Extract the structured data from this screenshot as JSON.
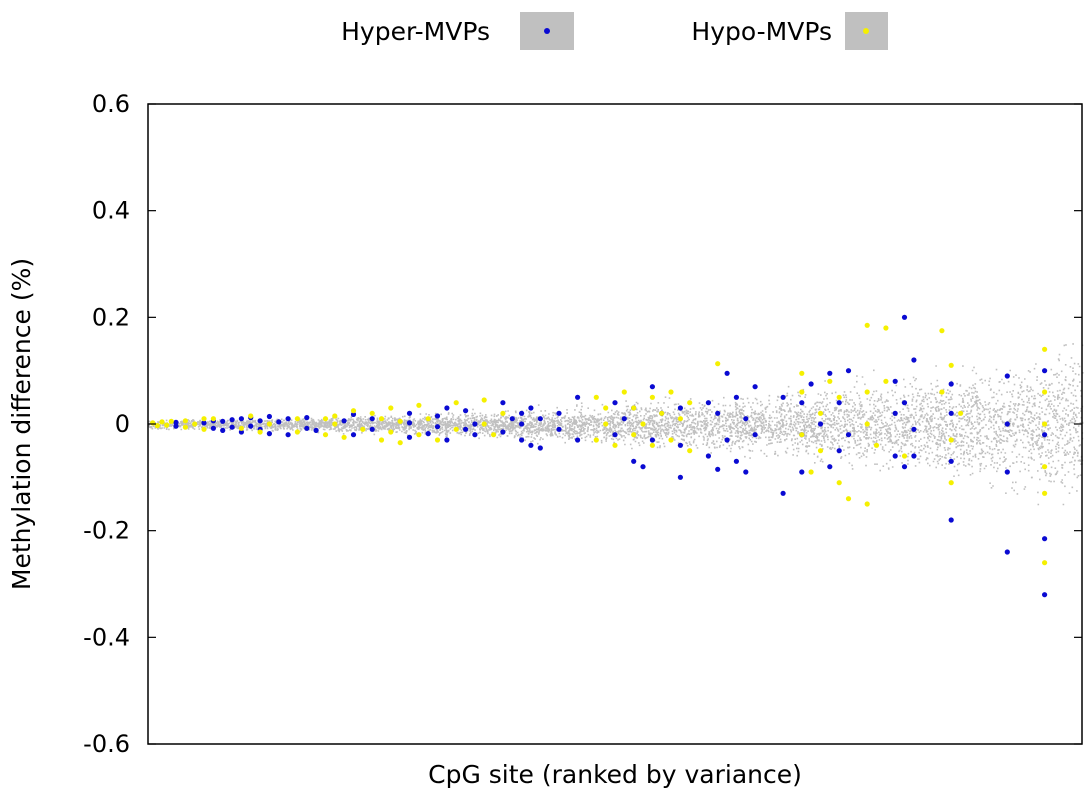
{
  "chart_data": {
    "type": "scatter",
    "title": "",
    "xlabel": "CpG site (ranked by variance)",
    "ylabel": "Methylation difference (%)",
    "ylim": [
      -0.6,
      0.6
    ],
    "yticks": [
      "0.6",
      "0.4",
      "0.2",
      "0",
      "-0.2",
      "-0.4",
      "-0.6"
    ],
    "ytick_values": [
      0.6,
      0.4,
      0.2,
      0,
      -0.2,
      -0.4,
      -0.6
    ],
    "xlim": [
      0,
      1
    ],
    "grid": false,
    "legend_position": "top",
    "background_points": {
      "color": "#c0c0c0",
      "description_shape": "funnel widening with rank"
    },
    "series": [
      {
        "name": "Hyper-MVPs",
        "color": "#0a0ad2",
        "legend_box": "#c0c0c0",
        "points": [
          [
            0.03,
            0.003
          ],
          [
            0.03,
            -0.004
          ],
          [
            0.06,
            0.002
          ],
          [
            0.07,
            -0.008
          ],
          [
            0.07,
            0.006
          ],
          [
            0.08,
            -0.012
          ],
          [
            0.08,
            0.005
          ],
          [
            0.09,
            -0.006
          ],
          [
            0.09,
            0.008
          ],
          [
            0.1,
            -0.015
          ],
          [
            0.1,
            0.01
          ],
          [
            0.11,
            -0.004
          ],
          [
            0.11,
            0.012
          ],
          [
            0.12,
            -0.01
          ],
          [
            0.12,
            0.006
          ],
          [
            0.13,
            -0.018
          ],
          [
            0.13,
            0.014
          ],
          [
            0.14,
            0.004
          ],
          [
            0.15,
            -0.02
          ],
          [
            0.15,
            0.01
          ],
          [
            0.17,
            -0.008
          ],
          [
            0.17,
            0.012
          ],
          [
            0.18,
            -0.012
          ],
          [
            0.21,
            0.006
          ],
          [
            0.22,
            -0.02
          ],
          [
            0.22,
            0.018
          ],
          [
            0.24,
            -0.01
          ],
          [
            0.24,
            0.01
          ],
          [
            0.28,
            -0.025
          ],
          [
            0.28,
            0.02
          ],
          [
            0.28,
            0.002
          ],
          [
            0.3,
            -0.018
          ],
          [
            0.31,
            0.015
          ],
          [
            0.31,
            -0.005
          ],
          [
            0.32,
            0.03
          ],
          [
            0.32,
            -0.03
          ],
          [
            0.34,
            -0.01
          ],
          [
            0.34,
            0.025
          ],
          [
            0.35,
            0.0
          ],
          [
            0.35,
            -0.02
          ],
          [
            0.38,
            0.04
          ],
          [
            0.38,
            -0.015
          ],
          [
            0.39,
            0.01
          ],
          [
            0.4,
            -0.03
          ],
          [
            0.4,
            0.02
          ],
          [
            0.4,
            0.0
          ],
          [
            0.41,
            -0.04
          ],
          [
            0.41,
            0.03
          ],
          [
            0.42,
            0.01
          ],
          [
            0.42,
            -0.045
          ],
          [
            0.44,
            -0.01
          ],
          [
            0.44,
            0.02
          ],
          [
            0.46,
            0.05
          ],
          [
            0.46,
            -0.03
          ],
          [
            0.5,
            0.04
          ],
          [
            0.5,
            -0.02
          ],
          [
            0.51,
            0.01
          ],
          [
            0.52,
            -0.07
          ],
          [
            0.52,
            0.03
          ],
          [
            0.53,
            -0.08
          ],
          [
            0.54,
            0.07
          ],
          [
            0.54,
            -0.03
          ],
          [
            0.55,
            0.02
          ],
          [
            0.57,
            -0.04
          ],
          [
            0.57,
            0.03
          ],
          [
            0.57,
            -0.1
          ],
          [
            0.6,
            0.04
          ],
          [
            0.6,
            -0.06
          ],
          [
            0.61,
            0.02
          ],
          [
            0.61,
            -0.085
          ],
          [
            0.62,
            0.095
          ],
          [
            0.62,
            -0.03
          ],
          [
            0.63,
            0.05
          ],
          [
            0.63,
            -0.07
          ],
          [
            0.64,
            0.01
          ],
          [
            0.64,
            -0.09
          ],
          [
            0.65,
            0.07
          ],
          [
            0.65,
            -0.02
          ],
          [
            0.68,
            -0.13
          ],
          [
            0.68,
            0.05
          ],
          [
            0.7,
            -0.09
          ],
          [
            0.7,
            0.04
          ],
          [
            0.7,
            -0.02
          ],
          [
            0.71,
            0.075
          ],
          [
            0.72,
            0.0
          ],
          [
            0.73,
            -0.08
          ],
          [
            0.73,
            0.095
          ],
          [
            0.74,
            0.04
          ],
          [
            0.74,
            -0.05
          ],
          [
            0.75,
            0.1
          ],
          [
            0.75,
            -0.02
          ],
          [
            0.8,
            0.08
          ],
          [
            0.8,
            -0.06
          ],
          [
            0.8,
            0.02
          ],
          [
            0.81,
            -0.08
          ],
          [
            0.81,
            0.2
          ],
          [
            0.81,
            0.04
          ],
          [
            0.82,
            -0.01
          ],
          [
            0.82,
            0.12
          ],
          [
            0.82,
            -0.06
          ],
          [
            0.86,
            -0.18
          ],
          [
            0.86,
            0.075
          ],
          [
            0.86,
            -0.07
          ],
          [
            0.86,
            0.02
          ],
          [
            0.92,
            0.09
          ],
          [
            0.92,
            -0.24
          ],
          [
            0.92,
            -0.09
          ],
          [
            0.92,
            0.0
          ],
          [
            0.96,
            -0.32
          ],
          [
            0.96,
            -0.215
          ],
          [
            0.96,
            0.1
          ],
          [
            0.96,
            -0.02
          ]
        ]
      },
      {
        "name": "Hypo-MVPs",
        "color": "#f5f000",
        "legend_box": "#c0c0c0",
        "points": [
          [
            0.005,
            0.002
          ],
          [
            0.01,
            -0.003
          ],
          [
            0.015,
            0.004
          ],
          [
            0.02,
            -0.002
          ],
          [
            0.025,
            0.005
          ],
          [
            0.04,
            -0.006
          ],
          [
            0.04,
            0.006
          ],
          [
            0.05,
            0.0
          ],
          [
            0.06,
            0.01
          ],
          [
            0.06,
            -0.01
          ],
          [
            0.07,
            0.01
          ],
          [
            0.1,
            -0.008
          ],
          [
            0.11,
            0.015
          ],
          [
            0.12,
            -0.015
          ],
          [
            0.13,
            0.0
          ],
          [
            0.16,
            0.01
          ],
          [
            0.16,
            -0.015
          ],
          [
            0.19,
            0.01
          ],
          [
            0.19,
            -0.02
          ],
          [
            0.2,
            0.0
          ],
          [
            0.2,
            0.015
          ],
          [
            0.21,
            -0.025
          ],
          [
            0.22,
            0.025
          ],
          [
            0.23,
            -0.01
          ],
          [
            0.24,
            0.02
          ],
          [
            0.25,
            -0.03
          ],
          [
            0.25,
            0.01
          ],
          [
            0.26,
            0.03
          ],
          [
            0.26,
            -0.015
          ],
          [
            0.27,
            0.005
          ],
          [
            0.27,
            -0.035
          ],
          [
            0.29,
            0.035
          ],
          [
            0.29,
            -0.02
          ],
          [
            0.3,
            0.01
          ],
          [
            0.31,
            -0.03
          ],
          [
            0.33,
            0.04
          ],
          [
            0.33,
            -0.01
          ],
          [
            0.36,
            0.045
          ],
          [
            0.36,
            0.0
          ],
          [
            0.37,
            -0.02
          ],
          [
            0.38,
            0.02
          ],
          [
            0.48,
            0.05
          ],
          [
            0.48,
            -0.03
          ],
          [
            0.49,
            0.0
          ],
          [
            0.49,
            0.03
          ],
          [
            0.5,
            -0.04
          ],
          [
            0.51,
            0.06
          ],
          [
            0.52,
            0.03
          ],
          [
            0.52,
            -0.02
          ],
          [
            0.53,
            0.0
          ],
          [
            0.54,
            0.05
          ],
          [
            0.54,
            -0.04
          ],
          [
            0.55,
            0.02
          ],
          [
            0.56,
            0.06
          ],
          [
            0.56,
            -0.03
          ],
          [
            0.57,
            0.01
          ],
          [
            0.58,
            -0.05
          ],
          [
            0.58,
            0.04
          ],
          [
            0.61,
            0.113
          ],
          [
            0.7,
            0.095
          ],
          [
            0.7,
            -0.02
          ],
          [
            0.7,
            0.06
          ],
          [
            0.71,
            -0.09
          ],
          [
            0.72,
            0.02
          ],
          [
            0.72,
            -0.05
          ],
          [
            0.73,
            0.08
          ],
          [
            0.74,
            -0.11
          ],
          [
            0.74,
            0.05
          ],
          [
            0.75,
            -0.14
          ],
          [
            0.77,
            0.0
          ],
          [
            0.77,
            0.06
          ],
          [
            0.77,
            -0.15
          ],
          [
            0.77,
            0.185
          ],
          [
            0.78,
            -0.04
          ],
          [
            0.79,
            0.18
          ],
          [
            0.79,
            0.08
          ],
          [
            0.81,
            -0.06
          ],
          [
            0.85,
            0.175
          ],
          [
            0.85,
            0.06
          ],
          [
            0.86,
            0.11
          ],
          [
            0.86,
            -0.03
          ],
          [
            0.86,
            -0.11
          ],
          [
            0.87,
            0.02
          ],
          [
            0.96,
            0.14
          ],
          [
            0.96,
            -0.08
          ],
          [
            0.96,
            -0.13
          ],
          [
            0.96,
            -0.26
          ],
          [
            0.96,
            0.06
          ],
          [
            0.96,
            0.0
          ]
        ]
      }
    ]
  }
}
